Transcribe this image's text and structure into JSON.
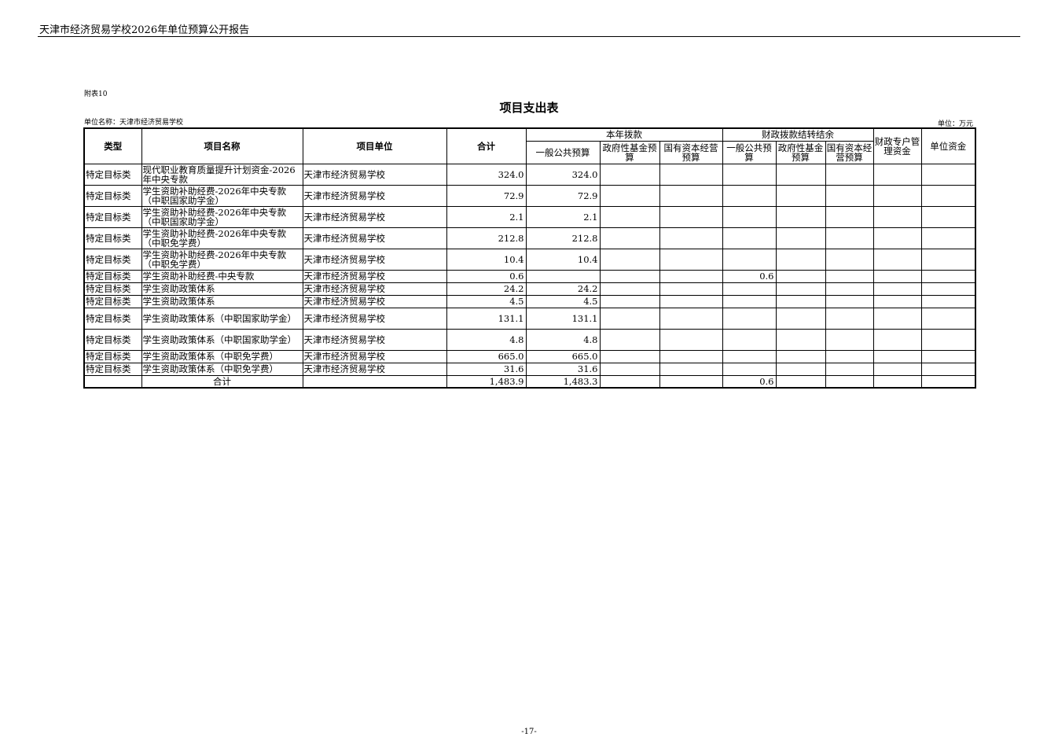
{
  "page_header": "天津市经济贸易学校2026年单位预算公开报告",
  "attachment_label": "附表10",
  "title": "项目支出表",
  "unit_name": "单位名称：天津市经济贸易学校",
  "unit": "单位：万元",
  "page_number": "-17-",
  "columns": {
    "type": "类型",
    "name": "项目名称",
    "unit": "项目单位",
    "total": "合计",
    "group_current": "本年拨款",
    "group_carryover": "财政拨款结转结余",
    "cur_general": "一般公共预算",
    "cur_fund": "政府性基金预算",
    "cur_state": "国有资本经营预算",
    "co_general": "一般公共预算",
    "co_fund": "政府性基金预算",
    "co_state": "国有资本经营预算",
    "special_account": "财政专户管理资金",
    "unit_funds": "单位资金"
  },
  "rows": [
    {
      "type": "特定目标类",
      "name": "现代职业教育质量提升计划资金-2026年中央专款",
      "unit": "天津市经济贸易学校",
      "total": "324.0",
      "cur_general": "324.0",
      "co_general": ""
    },
    {
      "type": "特定目标类",
      "name": "学生资助补助经费-2026年中央专款（中职国家助学金）",
      "unit": "天津市经济贸易学校",
      "total": "72.9",
      "cur_general": "72.9",
      "co_general": ""
    },
    {
      "type": "特定目标类",
      "name": "学生资助补助经费-2026年中央专款（中职国家助学金）",
      "unit": "天津市经济贸易学校",
      "total": "2.1",
      "cur_general": "2.1",
      "co_general": ""
    },
    {
      "type": "特定目标类",
      "name": "学生资助补助经费-2026年中央专款（中职免学费）",
      "unit": "天津市经济贸易学校",
      "total": "212.8",
      "cur_general": "212.8",
      "co_general": ""
    },
    {
      "type": "特定目标类",
      "name": "学生资助补助经费-2026年中央专款（中职免学费）",
      "unit": "天津市经济贸易学校",
      "total": "10.4",
      "cur_general": "10.4",
      "co_general": ""
    },
    {
      "type": "特定目标类",
      "name": "学生资助补助经费-中央专款",
      "unit": "天津市经济贸易学校",
      "total": "0.6",
      "cur_general": "",
      "co_general": "0.6"
    },
    {
      "type": "特定目标类",
      "name": "学生资助政策体系",
      "unit": "天津市经济贸易学校",
      "total": "24.2",
      "cur_general": "24.2",
      "co_general": ""
    },
    {
      "type": "特定目标类",
      "name": "学生资助政策体系",
      "unit": "天津市经济贸易学校",
      "total": "4.5",
      "cur_general": "4.5",
      "co_general": ""
    },
    {
      "type": "特定目标类",
      "name": "学生资助政策体系（中职国家助学金）",
      "unit": "天津市经济贸易学校",
      "total": "131.1",
      "cur_general": "131.1",
      "co_general": ""
    },
    {
      "type": "特定目标类",
      "name": "学生资助政策体系（中职国家助学金）",
      "unit": "天津市经济贸易学校",
      "total": "4.8",
      "cur_general": "4.8",
      "co_general": ""
    },
    {
      "type": "特定目标类",
      "name": "学生资助政策体系（中职免学费）",
      "unit": "天津市经济贸易学校",
      "total": "665.0",
      "cur_general": "665.0",
      "co_general": ""
    },
    {
      "type": "特定目标类",
      "name": "学生资助政策体系（中职免学费）",
      "unit": "天津市经济贸易学校",
      "total": "31.6",
      "cur_general": "31.6",
      "co_general": ""
    }
  ],
  "total_row": {
    "label": "合计",
    "total": "1,483.9",
    "cur_general": "1,483.3",
    "co_general": "0.6"
  }
}
